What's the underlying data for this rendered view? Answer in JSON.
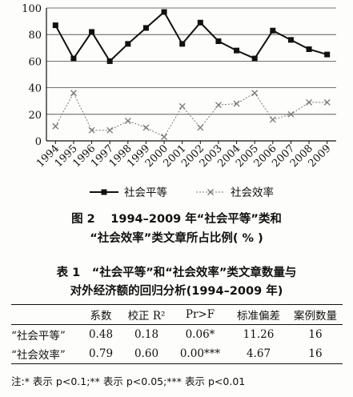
{
  "chart_data": {
    "type": "line",
    "x": [
      "1994",
      "1995",
      "1996",
      "1997",
      "1998",
      "1999",
      "2000",
      "2001",
      "2002",
      "2003",
      "2004",
      "2005",
      "2006",
      "2007",
      "2008",
      "2009"
    ],
    "series": [
      {
        "name": "社会平等",
        "marker": "square",
        "color": "#111111",
        "values": [
          87,
          62,
          82,
          60,
          73,
          85,
          97,
          73,
          89,
          75,
          68,
          62,
          83,
          76,
          69,
          65
        ]
      },
      {
        "name": "社会效率",
        "marker": "x",
        "color": "#777777",
        "values": [
          11,
          36,
          8,
          8,
          15,
          10,
          3,
          26,
          10,
          27,
          28,
          36,
          16,
          20,
          29,
          29
        ]
      }
    ],
    "ylim": [
      0,
      100
    ],
    "yticks": [
      "0",
      "20",
      "40",
      "60",
      "80",
      "100"
    ],
    "grid": true,
    "legend": "bottom"
  },
  "figure_caption_1": "图 2　 1994–2009 年“社会平等”类和",
  "figure_caption_2": "“社会效率”类文章所占比例( % )",
  "table_caption_1": "表 1　“社会平等”和“社会效率”类文章数量与",
  "table_caption_2": "对外经济额的回归分析(1994–2009 年)",
  "table": {
    "headers": [
      "",
      "系数",
      "校正 R²",
      "Pr>F",
      "标准偏差",
      "案例数量"
    ],
    "rows": [
      [
        "“社会平等”",
        "0.48",
        "0.18",
        "0.06*",
        "11.26",
        "16"
      ],
      [
        "“社会效率”",
        "0.79",
        "0.60",
        "0.00***",
        "4.67",
        "16"
      ]
    ]
  },
  "note": "注:* 表示 p<0.1;** 表示 p<0.05;*** 表示 p<0.01"
}
